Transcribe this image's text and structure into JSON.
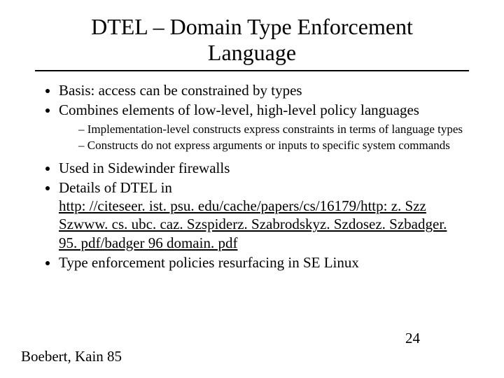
{
  "title_line1": "DTEL – Domain Type Enforcement",
  "title_line2": "Language",
  "bullets": {
    "b0": "Basis: access can be constrained by types",
    "b1": "Combines elements of low-level, high-level policy languages",
    "b1_sub0": "Implementation-level constructs express constraints in terms of language types",
    "b1_sub1": "Constructs do not express arguments or inputs to specific system commands",
    "b2": "Used in Sidewinder firewalls",
    "b3_lead": "Details of DTEL in",
    "b3_url_l1": "http: //citeseer. ist. psu. edu/cache/papers/cs/16179/http: z. Szz",
    "b3_url_l2": "Szwww. cs. ubc. caz. Szspiderz. Szabrodskyz. Szdosez. Szbadger.",
    "b3_url_l3": "95. pdf/badger 96 domain. pdf",
    "b4": "Type enforcement policies resurfacing in SE Linux"
  },
  "footer_left": "Boebert, Kain 85",
  "page_number": "24",
  "colors": {
    "text": "#000000",
    "background": "#ffffff",
    "rule": "#000000"
  }
}
